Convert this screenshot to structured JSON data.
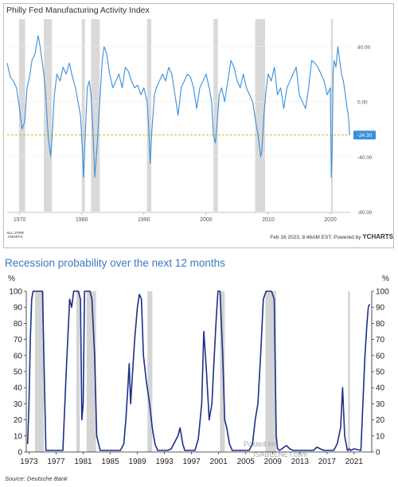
{
  "chart_data": [
    {
      "type": "line",
      "title": "Philly Fed Manufacturing Activity Index",
      "xlim": [
        1968,
        2023.2
      ],
      "ylim": [
        -80,
        60
      ],
      "x_ticks": [
        1970,
        1980,
        1990,
        2000,
        2010,
        2020
      ],
      "y_ticks": [
        {
          "value": 40,
          "label": "40.00"
        },
        {
          "value": 0,
          "label": "0.00"
        },
        {
          "value": -40,
          "label": "-40.00"
        },
        {
          "value": -80,
          "label": "-80.00"
        }
      ],
      "reference_line": -24.3,
      "last_value_label": "-24.30",
      "recessions": [
        [
          1969.9,
          1970.9
        ],
        [
          1973.9,
          1975.2
        ],
        [
          1980.0,
          1980.5
        ],
        [
          1981.5,
          1982.9
        ],
        [
          1990.5,
          1991.2
        ],
        [
          2001.2,
          2001.9
        ],
        [
          2007.9,
          2009.5
        ],
        [
          2020.1,
          2020.4
        ]
      ],
      "line_color": "#3a8fd9",
      "series": [
        {
          "x": [
            1968.0,
            1968.5,
            1969.0,
            1969.5,
            1970.0,
            1970.4,
            1970.8,
            1971.2,
            1971.6,
            1972.0,
            1972.5,
            1973.0,
            1973.3,
            1973.6,
            1973.9,
            1974.2,
            1974.6,
            1975.0,
            1975.3,
            1975.6,
            1976.0,
            1976.5,
            1977.0,
            1977.5,
            1978.0,
            1978.5,
            1979.0,
            1979.4,
            1979.8,
            1980.1,
            1980.3,
            1980.6,
            1980.9,
            1981.2,
            1981.5,
            1981.8,
            1982.1,
            1982.5,
            1982.9,
            1983.3,
            1983.6,
            1984.0,
            1984.5,
            1985.0,
            1985.5,
            1986.0,
            1986.5,
            1987.0,
            1987.5,
            1988.0,
            1988.5,
            1989.0,
            1989.5,
            1990.0,
            1990.5,
            1990.8,
            1991.0,
            1991.3,
            1991.7,
            1992.0,
            1992.5,
            1993.0,
            1993.5,
            1994.0,
            1994.5,
            1995.0,
            1995.5,
            1996.0,
            1996.5,
            1997.0,
            1997.5,
            1998.0,
            1998.5,
            1999.0,
            1999.5,
            2000.0,
            2000.5,
            2000.9,
            2001.2,
            2001.5,
            2001.8,
            2002.1,
            2002.5,
            2003.0,
            2003.5,
            2004.0,
            2004.5,
            2005.0,
            2005.5,
            2006.0,
            2006.5,
            2007.0,
            2007.5,
            2008.0,
            2008.4,
            2008.8,
            2009.0,
            2009.3,
            2009.7,
            2010.0,
            2010.5,
            2011.0,
            2011.5,
            2012.0,
            2012.5,
            2013.0,
            2013.5,
            2014.0,
            2014.5,
            2015.0,
            2015.5,
            2016.0,
            2016.5,
            2017.0,
            2017.5,
            2018.0,
            2018.5,
            2019.0,
            2019.5,
            2020.0,
            2020.15,
            2020.3,
            2020.45,
            2020.6,
            2020.9,
            2021.2,
            2021.5,
            2021.8,
            2022.1,
            2022.4,
            2022.7,
            2022.9,
            2023.1
          ],
          "y": [
            28,
            18,
            15,
            10,
            -5,
            -20,
            -15,
            10,
            18,
            30,
            35,
            48,
            40,
            30,
            20,
            5,
            -25,
            -40,
            -20,
            5,
            20,
            15,
            25,
            20,
            28,
            18,
            10,
            0,
            -10,
            -35,
            -55,
            -20,
            10,
            15,
            5,
            -20,
            -55,
            -30,
            0,
            30,
            40,
            35,
            20,
            10,
            15,
            20,
            10,
            25,
            22,
            15,
            10,
            12,
            5,
            10,
            0,
            -20,
            -45,
            -20,
            5,
            10,
            15,
            20,
            15,
            25,
            20,
            5,
            -10,
            10,
            15,
            20,
            18,
            10,
            -5,
            10,
            15,
            20,
            10,
            0,
            -25,
            -30,
            -15,
            5,
            10,
            0,
            15,
            30,
            25,
            15,
            10,
            20,
            10,
            5,
            0,
            -15,
            -25,
            -40,
            -35,
            -10,
            10,
            20,
            15,
            25,
            5,
            10,
            -5,
            10,
            15,
            20,
            25,
            5,
            0,
            -5,
            10,
            30,
            28,
            25,
            20,
            15,
            5,
            10,
            -55,
            -30,
            20,
            30,
            25,
            40,
            30,
            20,
            15,
            5,
            -5,
            -10,
            -24.3
          ]
        }
      ]
    },
    {
      "type": "line",
      "title": "Recession probability over the next 12 months",
      "ylabel": "%",
      "xlim": [
        1972.6,
        2023.6
      ],
      "ylim": [
        0,
        100
      ],
      "x_ticks": [
        1973,
        1977,
        1981,
        1985,
        1989,
        1993,
        1997,
        2001,
        2005,
        2009,
        2013,
        2017,
        2021
      ],
      "y_ticks": [
        0,
        10,
        20,
        30,
        40,
        50,
        60,
        70,
        80,
        90,
        100
      ],
      "recessions": [
        [
          1973.9,
          1975.2
        ],
        [
          1980.0,
          1980.5
        ],
        [
          1981.5,
          1982.9
        ],
        [
          1990.5,
          1991.2
        ],
        [
          2001.2,
          2001.9
        ],
        [
          2007.9,
          2009.5
        ],
        [
          2020.1,
          2020.4
        ]
      ],
      "line_color": "#1c2f86",
      "source": "Source: Deutsche Bank",
      "watermark": [
        "Posted on",
        "ISABELNET.com"
      ],
      "series": [
        {
          "x": [
            1972.8,
            1973.0,
            1973.2,
            1973.4,
            1973.6,
            1973.8,
            1975.0,
            1975.2,
            1975.5,
            1977.0,
            1978.0,
            1978.5,
            1979.0,
            1979.3,
            1979.6,
            1980.0,
            1980.3,
            1980.6,
            1980.8,
            1981.0,
            1981.2,
            1981.5,
            1982.0,
            1982.3,
            1982.7,
            1983.0,
            1983.5,
            1985.0,
            1986.5,
            1987.0,
            1987.3,
            1987.6,
            1987.8,
            1988.0,
            1988.3,
            1988.6,
            1989.0,
            1989.3,
            1989.6,
            1989.9,
            1990.3,
            1990.8,
            1991.2,
            1991.6,
            1992.0,
            1993.5,
            1994.0,
            1995.0,
            1995.3,
            1995.7,
            1996.0,
            1997.5,
            1998.0,
            1998.5,
            1998.8,
            1999.2,
            1999.6,
            2000.0,
            2000.3,
            2000.6,
            2000.9,
            2001.2,
            2001.6,
            2001.9,
            2002.2,
            2002.6,
            2003.0,
            2004.0,
            2005.5,
            2006.0,
            2006.4,
            2006.8,
            2007.2,
            2007.6,
            2008.0,
            2008.4,
            2008.8,
            2009.2,
            2009.5,
            2009.7,
            2010.0,
            2011.0,
            2011.5,
            2012.0,
            2012.5,
            2013.0,
            2015.0,
            2015.5,
            2016.0,
            2016.5,
            2017.0,
            2018.0,
            2018.5,
            2019.0,
            2019.3,
            2019.6,
            2020.0,
            2020.3,
            2020.5,
            2021.0,
            2022.0,
            2022.3,
            2022.6,
            2022.9,
            2023.1,
            2023.3
          ],
          "y": [
            5,
            30,
            70,
            95,
            100,
            100,
            100,
            60,
            1,
            1,
            1,
            50,
            95,
            90,
            100,
            100,
            100,
            95,
            20,
            30,
            100,
            100,
            100,
            95,
            60,
            10,
            1,
            1,
            1,
            5,
            20,
            40,
            55,
            30,
            50,
            70,
            90,
            98,
            95,
            60,
            45,
            30,
            15,
            5,
            1,
            1,
            2,
            10,
            15,
            5,
            1,
            1,
            8,
            30,
            75,
            50,
            20,
            30,
            55,
            80,
            100,
            100,
            60,
            20,
            15,
            5,
            1,
            1,
            1,
            5,
            20,
            30,
            60,
            95,
            100,
            100,
            100,
            95,
            10,
            2,
            1,
            4,
            2,
            1,
            1,
            1,
            1,
            3,
            2,
            1,
            1,
            1,
            5,
            15,
            40,
            10,
            1,
            2,
            1,
            2,
            1,
            30,
            60,
            80,
            90,
            92
          ]
        }
      ]
    }
  ],
  "ui": {
    "footer_logo": [
      "ALL STAR",
      "CHARTS"
    ],
    "footer_date": "Feb 16 2023, 8:46AM EST. Powered by",
    "footer_brand": "YCHARTS"
  }
}
